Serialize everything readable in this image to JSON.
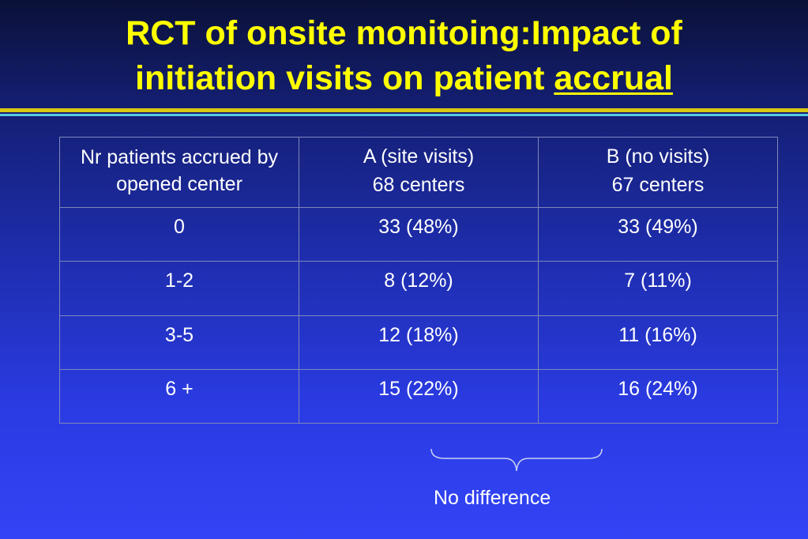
{
  "slide": {
    "title_line1": "RCT of onsite monitoing:Impact of",
    "title_line2_prefix": "initiation visits on patient ",
    "title_line2_underlined": "accrual",
    "note": "No difference"
  },
  "table": {
    "header": {
      "col0": "Nr patients accrued by opened center",
      "col1_line1": "A (site visits)",
      "col1_line2": "68 centers",
      "col2_line1": "B (no visits)",
      "col2_line2": "67 centers"
    },
    "rows": [
      {
        "label": "0",
        "a": "33 (48%)",
        "b": "33 (49%)"
      },
      {
        "label": "1-2",
        "a": "8 (12%)",
        "b": "7 (11%)"
      },
      {
        "label": "3-5",
        "a": "12 (18%)",
        "b": "11 (16%)"
      },
      {
        "label": "6 +",
        "a": "15 (22%)",
        "b": "16 (24%)"
      }
    ]
  },
  "colors": {
    "title": "#ffff00",
    "text": "#ffffff",
    "rule_gold": "#d8c814",
    "rule_cyan": "#57c9e2"
  }
}
